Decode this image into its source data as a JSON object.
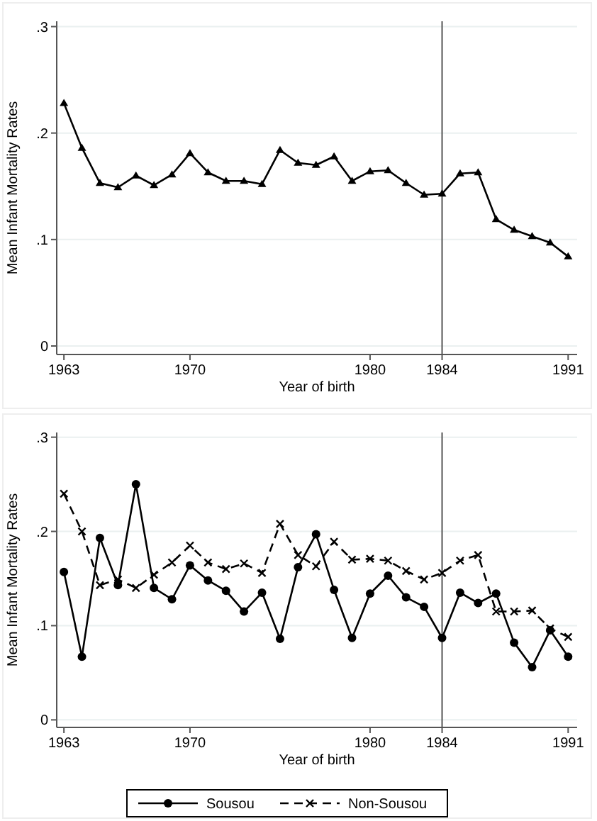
{
  "chart_data": [
    {
      "type": "line",
      "xlabel": "Year of birth",
      "ylabel": "Mean Infant Mortality Rates",
      "x": [
        1963,
        1964,
        1965,
        1966,
        1967,
        1968,
        1969,
        1970,
        1971,
        1972,
        1973,
        1974,
        1975,
        1976,
        1977,
        1978,
        1979,
        1980,
        1981,
        1982,
        1983,
        1984,
        1985,
        1986,
        1987,
        1988,
        1989,
        1990,
        1991
      ],
      "series": [
        {
          "color": "#000000",
          "marker": "triangle",
          "line_style": "solid",
          "values": [
            0.228,
            0.186,
            0.153,
            0.149,
            0.16,
            0.151,
            0.161,
            0.181,
            0.163,
            0.155,
            0.155,
            0.152,
            0.184,
            0.172,
            0.17,
            0.178,
            0.155,
            0.164,
            0.165,
            0.153,
            0.142,
            0.143,
            0.162,
            0.163,
            0.119,
            0.109,
            0.103,
            0.097,
            0.084
          ]
        }
      ],
      "xlim": [
        1962.6,
        1991.5
      ],
      "xticks": [
        1963,
        1970,
        1980,
        1984,
        1991
      ],
      "ylim": [
        -0.008,
        0.305
      ],
      "yticks": [
        0,
        {
          "value": 0.1,
          "label": ".1"
        },
        {
          "value": 0.2,
          "label": ".2"
        },
        {
          "value": 0.3,
          "label": ".3"
        }
      ],
      "grid": "y",
      "ref_lines": [
        {
          "axis": "x",
          "value": 1984,
          "color": "#555555"
        }
      ]
    },
    {
      "type": "line",
      "xlabel": "Year of birth",
      "ylabel": "Mean Infant Mortality Rates",
      "x": [
        1963,
        1964,
        1965,
        1966,
        1967,
        1968,
        1969,
        1970,
        1971,
        1972,
        1973,
        1974,
        1975,
        1976,
        1977,
        1978,
        1979,
        1980,
        1981,
        1982,
        1983,
        1984,
        1985,
        1986,
        1987,
        1988,
        1989,
        1990,
        1991
      ],
      "series": [
        {
          "name": "Sousou",
          "color": "#000000",
          "marker": "circle",
          "line_style": "solid",
          "values": [
            0.157,
            0.067,
            0.193,
            0.143,
            0.25,
            0.14,
            0.128,
            0.164,
            0.148,
            0.137,
            0.115,
            0.135,
            0.086,
            0.162,
            0.197,
            0.138,
            0.087,
            0.134,
            0.153,
            0.13,
            0.12,
            0.087,
            0.135,
            0.124,
            0.134,
            0.082,
            0.056,
            0.095,
            0.067
          ]
        },
        {
          "name": "Non-Sousou",
          "color": "#000000",
          "marker": "cross",
          "line_style": "dashed",
          "values": [
            0.24,
            0.2,
            0.143,
            0.149,
            0.14,
            0.154,
            0.167,
            0.185,
            0.167,
            0.16,
            0.166,
            0.156,
            0.208,
            0.175,
            0.163,
            0.189,
            0.17,
            0.171,
            0.169,
            0.158,
            0.149,
            0.156,
            0.169,
            0.175,
            0.115,
            0.115,
            0.116,
            0.097,
            0.088
          ]
        }
      ],
      "xlim": [
        1962.6,
        1991.5
      ],
      "xticks": [
        1963,
        1970,
        1980,
        1984,
        1991
      ],
      "ylim": [
        -0.008,
        0.305
      ],
      "yticks": [
        0,
        {
          "value": 0.1,
          "label": ".1"
        },
        {
          "value": 0.2,
          "label": ".2"
        },
        {
          "value": 0.3,
          "label": ".3"
        }
      ],
      "grid": "y",
      "legend": "bottom",
      "ref_lines": [
        {
          "axis": "x",
          "value": 1984,
          "color": "#555555"
        }
      ]
    }
  ]
}
